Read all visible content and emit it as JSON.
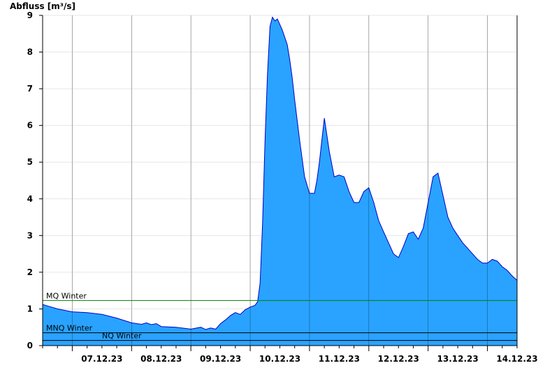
{
  "chart_data": {
    "type": "area",
    "ylabel": "Abfluss [m³/s]",
    "ylim": [
      0,
      9
    ],
    "yticks": [
      "0",
      "1",
      "2",
      "3",
      "4",
      "5",
      "6",
      "7",
      "8",
      "9"
    ],
    "xlim": [
      "06.12.23 12:00",
      "14.12.23 12:00"
    ],
    "day_labels": [
      "07.12.23",
      "08.12.23",
      "09.12.23",
      "10.12.23",
      "11.12.23",
      "12.12.23",
      "13.12.23",
      "14.12.23"
    ],
    "grid": true,
    "colors": {
      "fill": "#29A3FF",
      "line": "#0000CC",
      "mq_line": "#008000",
      "low_lines": "#000000"
    },
    "reference_lines": [
      {
        "name": "MQ Winter",
        "value": 1.23
      },
      {
        "name": "MNQ Winter",
        "value": 0.35
      },
      {
        "name": "NQ Winter",
        "value": 0.14
      }
    ],
    "series": [
      {
        "x": [
          "06.12.23 12:00",
          "06.12.23 14:00",
          "06.12.23 18:00",
          "07.12.23 00:00",
          "07.12.23 06:00",
          "07.12.23 12:00",
          "07.12.23 18:00",
          "08.12.23 00:00",
          "08.12.23 04:00",
          "08.12.23 06:00",
          "08.12.23 08:00",
          "08.12.23 10:00",
          "08.12.23 12:00",
          "08.12.23 18:00",
          "09.12.23 00:00",
          "09.12.23 04:00",
          "09.12.23 06:00",
          "09.12.23 08:00",
          "09.12.23 10:00",
          "09.12.23 12:00",
          "09.12.23 14:00",
          "09.12.23 16:00",
          "09.12.23 18:00",
          "09.12.23 20:00",
          "09.12.23 22:00",
          "10.12.23 00:00",
          "10.12.23 02:00",
          "10.12.23 03:00",
          "10.12.23 04:00",
          "10.12.23 05:00",
          "10.12.23 06:00",
          "10.12.23 07:00",
          "10.12.23 08:00",
          "10.12.23 09:00",
          "10.12.23 10:00",
          "10.12.23 11:00",
          "10.12.23 12:00",
          "10.12.23 13:00",
          "10.12.23 14:00",
          "10.12.23 15:00",
          "10.12.23 16:00",
          "10.12.23 17:00",
          "10.12.23 18:00",
          "10.12.23 20:00",
          "10.12.23 22:00",
          "11.12.23 00:00",
          "11.12.23 02:00",
          "11.12.23 03:00",
          "11.12.23 04:00",
          "11.12.23 05:00",
          "11.12.23 06:00",
          "11.12.23 08:00",
          "11.12.23 10:00",
          "11.12.23 12:00",
          "11.12.23 14:00",
          "11.12.23 16:00",
          "11.12.23 18:00",
          "11.12.23 20:00",
          "11.12.23 22:00",
          "12.12.23 00:00",
          "12.12.23 02:00",
          "12.12.23 04:00",
          "12.12.23 06:00",
          "12.12.23 08:00",
          "12.12.23 10:00",
          "12.12.23 12:00",
          "12.12.23 14:00",
          "12.12.23 16:00",
          "12.12.23 18:00",
          "12.12.23 20:00",
          "12.12.23 22:00",
          "13.12.23 00:00",
          "13.12.23 02:00",
          "13.12.23 04:00",
          "13.12.23 06:00",
          "13.12.23 08:00",
          "13.12.23 10:00",
          "13.12.23 12:00",
          "13.12.23 14:00",
          "13.12.23 16:00",
          "13.12.23 18:00",
          "13.12.23 20:00",
          "13.12.23 22:00",
          "14.12.23 00:00",
          "14.12.23 02:00",
          "14.12.23 04:00",
          "14.12.23 06:00",
          "14.12.23 08:00",
          "14.12.23 10:00",
          "14.12.23 12:00"
        ],
        "y": [
          1.12,
          1.08,
          1.0,
          0.92,
          0.9,
          0.85,
          0.75,
          0.62,
          0.58,
          0.62,
          0.57,
          0.6,
          0.52,
          0.5,
          0.45,
          0.5,
          0.44,
          0.48,
          0.45,
          0.6,
          0.7,
          0.82,
          0.9,
          0.85,
          0.98,
          1.05,
          1.1,
          1.2,
          1.7,
          3.3,
          5.6,
          7.4,
          8.7,
          8.95,
          8.85,
          8.9,
          8.75,
          8.6,
          8.4,
          8.2,
          7.8,
          7.3,
          6.7,
          5.6,
          4.6,
          4.15,
          4.15,
          4.5,
          5.0,
          5.6,
          6.2,
          5.3,
          4.6,
          4.65,
          4.6,
          4.2,
          3.9,
          3.9,
          4.2,
          4.3,
          3.9,
          3.4,
          3.1,
          2.8,
          2.5,
          2.4,
          2.7,
          3.05,
          3.1,
          2.9,
          3.2,
          3.9,
          4.6,
          4.7,
          4.1,
          3.5,
          3.2,
          3.0,
          2.8,
          2.65,
          2.5,
          2.35,
          2.25,
          2.25,
          2.35,
          2.3,
          2.15,
          2.05,
          1.9,
          1.78
        ]
      }
    ]
  }
}
